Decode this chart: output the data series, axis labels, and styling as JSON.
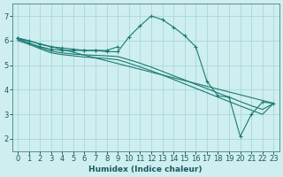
{
  "background_color": "#ceeef0",
  "grid_color": "#a8d8da",
  "line_color": "#1a7a70",
  "xlabel": "Humidex (Indice chaleur)",
  "xlim": [
    -0.5,
    23.5
  ],
  "ylim": [
    1.5,
    7.5
  ],
  "yticks": [
    2,
    3,
    4,
    5,
    6,
    7
  ],
  "xticks": [
    0,
    1,
    2,
    3,
    4,
    5,
    6,
    7,
    8,
    9,
    10,
    11,
    12,
    13,
    14,
    15,
    16,
    17,
    18,
    19,
    20,
    21,
    22,
    23
  ],
  "lines": [
    {
      "x": [
        0,
        1,
        2,
        3,
        4,
        5,
        6,
        7,
        8,
        9,
        10,
        11,
        12,
        13,
        14,
        15,
        16,
        17,
        18,
        19,
        20,
        21,
        22,
        23
      ],
      "y": [
        6.1,
        6.0,
        5.85,
        5.75,
        5.7,
        5.65,
        5.6,
        5.6,
        5.55,
        5.55,
        6.15,
        6.6,
        7.0,
        6.85,
        6.55,
        6.2,
        5.75,
        4.35,
        3.75,
        3.7,
        2.1,
        3.0,
        3.5,
        3.45
      ],
      "marker": true
    },
    {
      "x": [
        0,
        1,
        2,
        3,
        4,
        5,
        6,
        7,
        8,
        9
      ],
      "y": [
        6.1,
        5.9,
        5.75,
        5.65,
        5.6,
        5.6,
        5.6,
        5.6,
        5.6,
        5.75
      ],
      "marker": true
    },
    {
      "x": [
        0,
        23
      ],
      "y": [
        6.1,
        3.45
      ],
      "marker": false
    },
    {
      "x": [
        0,
        1,
        2,
        3,
        4,
        5,
        6,
        7,
        8,
        9,
        10,
        11,
        12,
        13,
        14,
        15,
        16,
        17,
        18,
        19,
        20,
        21,
        22,
        23
      ],
      "y": [
        6.05,
        5.9,
        5.72,
        5.57,
        5.5,
        5.45,
        5.42,
        5.4,
        5.38,
        5.35,
        5.22,
        5.08,
        4.92,
        4.75,
        4.57,
        4.4,
        4.22,
        4.05,
        3.87,
        3.7,
        3.52,
        3.35,
        3.2,
        3.45
      ],
      "marker": false
    },
    {
      "x": [
        0,
        1,
        2,
        3,
        4,
        5,
        6,
        7,
        8,
        9,
        10,
        11,
        12,
        13,
        14,
        15,
        16,
        17,
        18,
        19,
        20,
        21,
        22,
        23
      ],
      "y": [
        6.0,
        5.85,
        5.67,
        5.5,
        5.43,
        5.38,
        5.33,
        5.3,
        5.27,
        5.22,
        5.08,
        4.93,
        4.77,
        4.6,
        4.42,
        4.24,
        4.06,
        3.88,
        3.7,
        3.52,
        3.34,
        3.17,
        3.0,
        3.45
      ],
      "marker": false
    }
  ],
  "label_fontsize": 6.5,
  "tick_fontsize": 6
}
